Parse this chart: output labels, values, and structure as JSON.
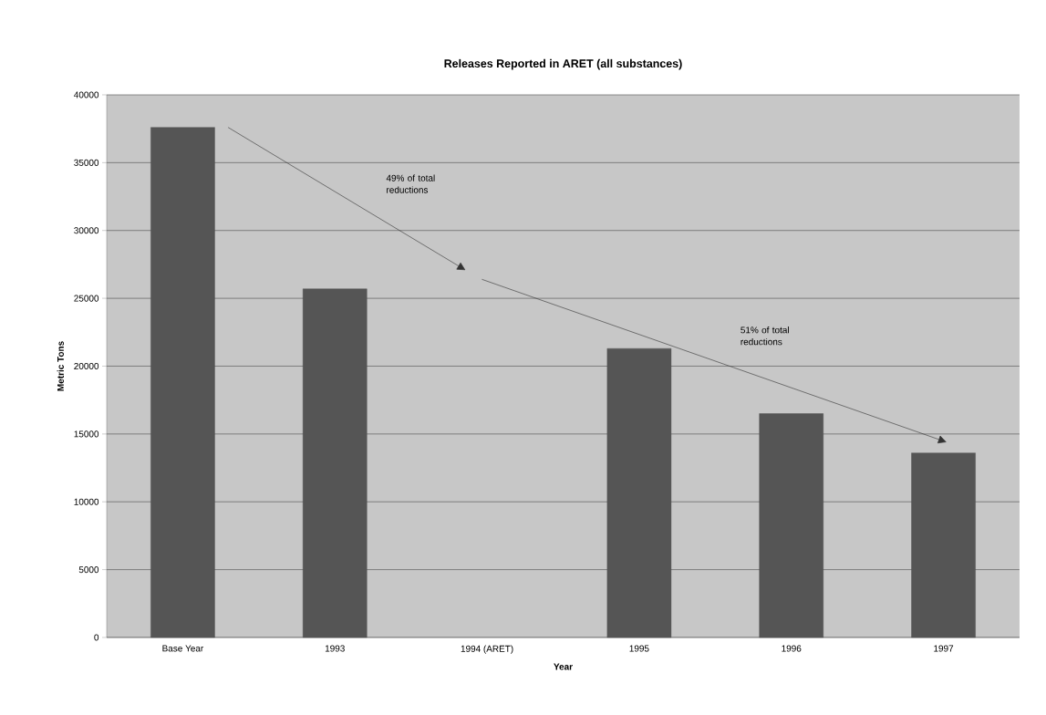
{
  "chart_data": {
    "type": "bar",
    "title": "Releases Reported in ARET (all substances)",
    "xlabel": "Year",
    "ylabel": "Metric Tons",
    "categories": [
      "Base Year",
      "1993",
      "1994 (ARET)",
      "1995",
      "1996",
      "1997"
    ],
    "values": [
      37600,
      25700,
      null,
      21300,
      16500,
      13600
    ],
    "color": "#555555",
    "ylim": [
      0,
      40000
    ],
    "yticks": [
      0,
      5000,
      10000,
      15000,
      20000,
      25000,
      30000,
      35000,
      40000
    ],
    "grid": "y",
    "annotations": [
      "49% of total reductions",
      "51% of total reductions"
    ]
  }
}
